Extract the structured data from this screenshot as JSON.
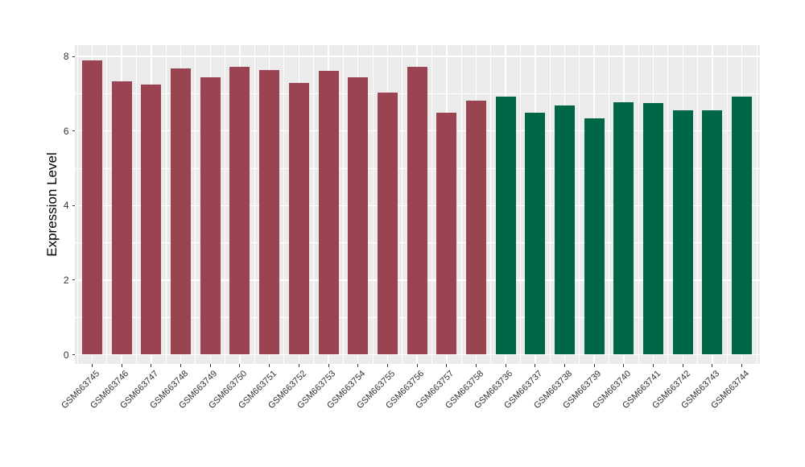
{
  "chart_data": {
    "type": "bar",
    "title": "",
    "xlabel": "",
    "ylabel": "Expression Level",
    "ylim": [
      0,
      8.3
    ],
    "yticks": [
      0,
      2,
      4,
      6,
      8
    ],
    "yticks_minor": [
      1,
      3,
      5,
      7
    ],
    "grid": "major and minor white gridlines on gray panel, both axes",
    "legend": "none",
    "categories": [
      "GSM663745",
      "GSM663746",
      "GSM663747",
      "GSM663748",
      "GSM663749",
      "GSM663750",
      "GSM663751",
      "GSM663752",
      "GSM663753",
      "GSM663754",
      "GSM663755",
      "GSM663756",
      "GSM663757",
      "GSM663758",
      "GSM663736",
      "GSM663737",
      "GSM663738",
      "GSM663739",
      "GSM663740",
      "GSM663741",
      "GSM663742",
      "GSM663743",
      "GSM663744"
    ],
    "values": [
      7.9,
      7.34,
      7.25,
      7.68,
      7.45,
      7.72,
      7.64,
      7.28,
      7.62,
      7.45,
      7.02,
      7.73,
      6.5,
      6.82,
      6.92,
      6.5,
      6.68,
      6.33,
      6.77,
      6.75,
      6.55,
      6.56,
      6.92
    ],
    "groups": [
      {
        "name": "group-1-maroon",
        "color": "#9A4452",
        "samples": [
          "GSM663745",
          "GSM663746",
          "GSM663747",
          "GSM663748",
          "GSM663749",
          "GSM663750",
          "GSM663751",
          "GSM663752",
          "GSM663753",
          "GSM663754",
          "GSM663755",
          "GSM663756",
          "GSM663757",
          "GSM663758"
        ]
      },
      {
        "name": "group-2-green",
        "color": "#006648",
        "samples": [
          "GSM663736",
          "GSM663737",
          "GSM663738",
          "GSM663739",
          "GSM663740",
          "GSM663741",
          "GSM663742",
          "GSM663743",
          "GSM663744"
        ]
      }
    ]
  },
  "style": {
    "panel_bg": "#EBEBEB",
    "grid_color": "#FFFFFF",
    "tick_mark_color": "#333333",
    "tick_label_color": "#333333",
    "axis_title_color": "#000000",
    "page_bg": "#FFFFFF"
  }
}
